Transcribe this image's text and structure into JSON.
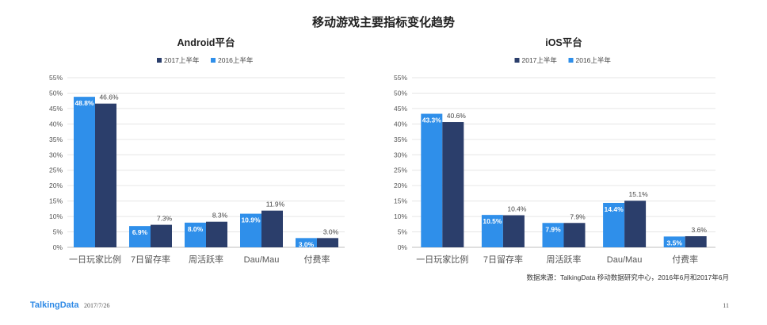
{
  "page": {
    "title": "移动游戏主要指标变化趋势",
    "source": "数据来源：TalkingData 移动数据研究中心，2016年6月和2017年6月",
    "brand": "TalkingData",
    "date": "2017/7/26",
    "page_number": "11"
  },
  "colors": {
    "series_2017": "#2b3e6b",
    "series_2016": "#2f8fea",
    "grid": "#e6e6e6",
    "axis": "#bfbfbf"
  },
  "chart_data": [
    {
      "type": "bar",
      "title": "Android平台",
      "categories": [
        "一日玩家比例",
        "7日留存率",
        "周活跃率",
        "Dau/Mau",
        "付费率"
      ],
      "series": [
        {
          "name": "2016上半年",
          "values": [
            48.8,
            6.9,
            8.0,
            10.9,
            3.0
          ],
          "labels": [
            "48.8%",
            "6.9%",
            "8.0%",
            "10.9%",
            "3.0%"
          ]
        },
        {
          "name": "2017上半年",
          "values": [
            46.6,
            7.3,
            8.3,
            11.9,
            3.0
          ],
          "labels": [
            "46.6%",
            "7.3%",
            "8.3%",
            "11.9%",
            "3.0%"
          ]
        }
      ],
      "legend_order": [
        "2017上半年",
        "2016上半年"
      ],
      "ylim": [
        0,
        55
      ],
      "yticks": [
        "0%",
        "5%",
        "10%",
        "15%",
        "20%",
        "25%",
        "30%",
        "35%",
        "40%",
        "45%",
        "50%",
        "55%"
      ],
      "grid": true,
      "legend_position": "top"
    },
    {
      "type": "bar",
      "title": "iOS平台",
      "categories": [
        "一日玩家比例",
        "7日留存率",
        "周活跃率",
        "Dau/Mau",
        "付费率"
      ],
      "series": [
        {
          "name": "2016上半年",
          "values": [
            43.3,
            10.5,
            7.9,
            14.4,
            3.5
          ],
          "labels": [
            "43.3%",
            "10.5%",
            "7.9%",
            "14.4%",
            "3.5%"
          ]
        },
        {
          "name": "2017上半年",
          "values": [
            40.6,
            10.4,
            7.9,
            15.1,
            3.6
          ],
          "labels": [
            "40.6%",
            "10.4%",
            "7.9%",
            "15.1%",
            "3.6%"
          ]
        }
      ],
      "legend_order": [
        "2017上半年",
        "2016上半年"
      ],
      "ylim": [
        0,
        55
      ],
      "yticks": [
        "0%",
        "5%",
        "10%",
        "15%",
        "20%",
        "25%",
        "30%",
        "35%",
        "40%",
        "45%",
        "50%",
        "55%"
      ],
      "grid": true,
      "legend_position": "top"
    }
  ]
}
